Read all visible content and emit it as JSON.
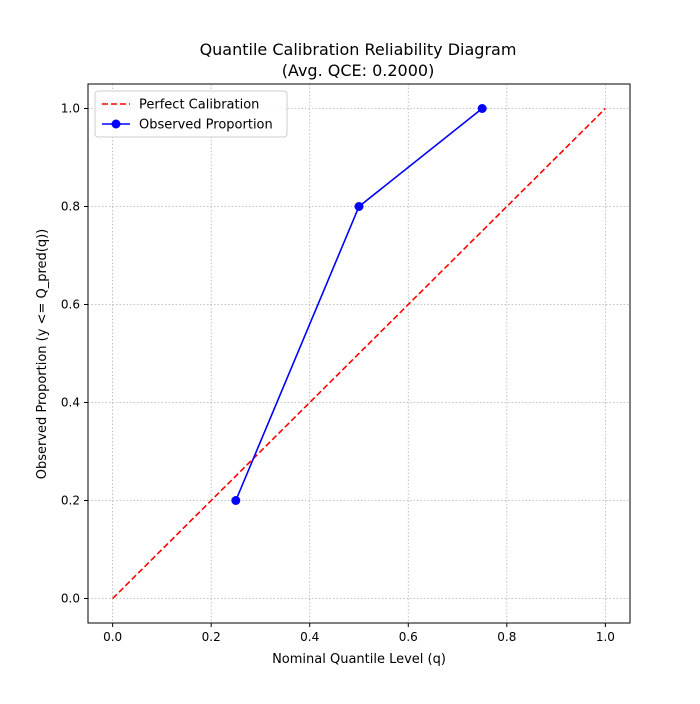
{
  "chart_data": {
    "type": "line",
    "title": "Quantile Calibration Reliability Diagram",
    "subtitle": "(Avg. QCE: 0.2000)",
    "xlabel": "Nominal Quantile Level (q)",
    "ylabel": "Observed Proportion (y <= Q_pred(q))",
    "xlim": [
      -0.05,
      1.05
    ],
    "ylim": [
      -0.05,
      1.05
    ],
    "xticks": [
      0.0,
      0.2,
      0.4,
      0.6,
      0.8,
      1.0
    ],
    "yticks": [
      0.0,
      0.2,
      0.4,
      0.6,
      0.8,
      1.0
    ],
    "xtick_labels": [
      "0.0",
      "0.2",
      "0.4",
      "0.6",
      "0.8",
      "1.0"
    ],
    "ytick_labels": [
      "0.0",
      "0.2",
      "0.4",
      "0.6",
      "0.8",
      "1.0"
    ],
    "grid": true,
    "legend_position": "top-left",
    "series": [
      {
        "name": "Perfect Calibration",
        "x": [
          0.0,
          1.0
        ],
        "y": [
          0.0,
          1.0
        ],
        "color": "#ff0000",
        "style": "dashed",
        "markers": false
      },
      {
        "name": "Observed Proportion",
        "x": [
          0.25,
          0.5,
          0.75
        ],
        "y": [
          0.2,
          0.8,
          1.0
        ],
        "color": "#0000ff",
        "style": "solid",
        "markers": true
      }
    ]
  }
}
